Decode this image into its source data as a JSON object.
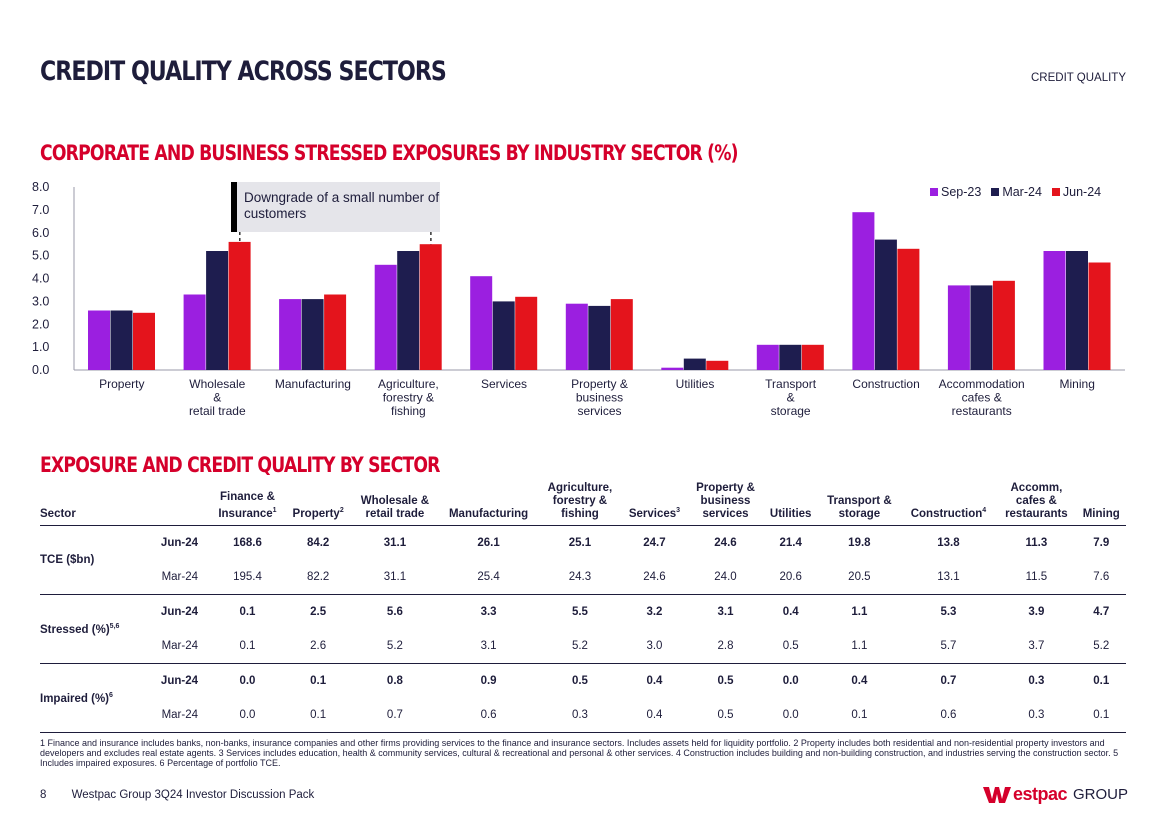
{
  "page": {
    "title": "CREDIT QUALITY ACROSS SECTORS",
    "section_tag": "CREDIT QUALITY",
    "chart_title": "CORPORATE AND BUSINESS STRESSED EXPOSURES BY INDUSTRY SECTOR (%)",
    "table_title": "EXPOSURE AND CREDIT QUALITY BY SECTOR",
    "callout": "Downgrade of a small number of customers",
    "page_number": "8",
    "footer_text": "Westpac Group 3Q24 Investor Discussion Pack",
    "logo_text": "estpac",
    "logo_group": "GROUP"
  },
  "colors": {
    "sep23": "#9b1fe0",
    "mar24": "#1e1d4f",
    "jun24": "#e4141c",
    "brand_red": "#d5002b",
    "navy": "#1e1d3b"
  },
  "chart_data": {
    "type": "bar",
    "title": "CORPORATE AND BUSINESS STRESSED EXPOSURES BY INDUSTRY SECTOR (%)",
    "categories": [
      [
        "Property"
      ],
      [
        "Wholesale",
        "&",
        "retail trade"
      ],
      [
        "Manufacturing"
      ],
      [
        "Agriculture,",
        "forestry &",
        "fishing"
      ],
      [
        "Services"
      ],
      [
        "Property &",
        "business",
        "services"
      ],
      [
        "Utilities"
      ],
      [
        "Transport",
        "&",
        "storage"
      ],
      [
        "Construction"
      ],
      [
        "Accommodation",
        "cafes &",
        "restaurants"
      ],
      [
        "Mining"
      ]
    ],
    "series": [
      {
        "name": "Sep-23",
        "values": [
          2.6,
          3.3,
          3.1,
          4.6,
          4.1,
          2.9,
          0.1,
          1.1,
          6.9,
          3.7,
          5.2
        ]
      },
      {
        "name": "Mar-24",
        "values": [
          2.6,
          5.2,
          3.1,
          5.2,
          3.0,
          2.8,
          0.5,
          1.1,
          5.7,
          3.7,
          5.2
        ]
      },
      {
        "name": "Jun-24",
        "values": [
          2.5,
          5.6,
          3.3,
          5.5,
          3.2,
          3.1,
          0.4,
          1.1,
          5.3,
          3.9,
          4.7
        ]
      }
    ],
    "ylim": [
      0,
      8
    ],
    "yticks": [
      "0.0",
      "1.0",
      "2.0",
      "3.0",
      "4.0",
      "5.0",
      "6.0",
      "7.0",
      "8.0"
    ],
    "xlabel": "",
    "ylabel": "",
    "legend": "top-right"
  },
  "table": {
    "sector_header": "Sector",
    "columns": [
      {
        "lines": [
          "Finance &",
          "Insurance"
        ],
        "sup": "1"
      },
      {
        "lines": [
          "Property"
        ],
        "sup": "2"
      },
      {
        "lines": [
          "Wholesale &",
          "retail trade"
        ],
        "sup": ""
      },
      {
        "lines": [
          "Manufacturing"
        ],
        "sup": ""
      },
      {
        "lines": [
          "Agriculture,",
          "forestry &",
          "fishing"
        ],
        "sup": ""
      },
      {
        "lines": [
          "Services"
        ],
        "sup": "3"
      },
      {
        "lines": [
          "Property &",
          "business",
          "services"
        ],
        "sup": ""
      },
      {
        "lines": [
          "Utilities"
        ],
        "sup": ""
      },
      {
        "lines": [
          "Transport &",
          "storage"
        ],
        "sup": ""
      },
      {
        "lines": [
          "Construction"
        ],
        "sup": "4"
      },
      {
        "lines": [
          "Accomm,",
          "cafes &",
          "restaurants"
        ],
        "sup": ""
      },
      {
        "lines": [
          "Mining"
        ],
        "sup": ""
      }
    ],
    "groups": [
      {
        "label": "TCE ($bn)",
        "sup": "",
        "rows": [
          {
            "period": "Jun-24",
            "values": [
              "168.6",
              "84.2",
              "31.1",
              "26.1",
              "25.1",
              "24.7",
              "24.6",
              "21.4",
              "19.8",
              "13.8",
              "11.3",
              "7.9"
            ]
          },
          {
            "period": "Mar-24",
            "values": [
              "195.4",
              "82.2",
              "31.1",
              "25.4",
              "24.3",
              "24.6",
              "24.0",
              "20.6",
              "20.5",
              "13.1",
              "11.5",
              "7.6"
            ]
          }
        ]
      },
      {
        "label": "Stressed (%)",
        "sup": "5,6",
        "rows": [
          {
            "period": "Jun-24",
            "values": [
              "0.1",
              "2.5",
              "5.6",
              "3.3",
              "5.5",
              "3.2",
              "3.1",
              "0.4",
              "1.1",
              "5.3",
              "3.9",
              "4.7"
            ]
          },
          {
            "period": "Mar-24",
            "values": [
              "0.1",
              "2.6",
              "5.2",
              "3.1",
              "5.2",
              "3.0",
              "2.8",
              "0.5",
              "1.1",
              "5.7",
              "3.7",
              "5.2"
            ]
          }
        ]
      },
      {
        "label": "Impaired (%)",
        "sup": "6",
        "rows": [
          {
            "period": "Jun-24",
            "values": [
              "0.0",
              "0.1",
              "0.8",
              "0.9",
              "0.5",
              "0.4",
              "0.5",
              "0.0",
              "0.4",
              "0.7",
              "0.3",
              "0.1"
            ]
          },
          {
            "period": "Mar-24",
            "values": [
              "0.0",
              "0.1",
              "0.7",
              "0.6",
              "0.3",
              "0.4",
              "0.5",
              "0.0",
              "0.1",
              "0.6",
              "0.3",
              "0.1"
            ]
          }
        ]
      }
    ]
  },
  "footnotes": "1 Finance and insurance includes banks, non-banks, insurance companies and other firms providing services to the finance and insurance sectors. Includes assets held for liquidity portfolio. 2 Property includes both residential and non-residential property investors and developers and excludes real estate agents. 3 Services includes education, health & community services, cultural & recreational and personal & other services. 4 Construction includes building and non-building construction, and industries serving the construction sector. 5 Includes impaired exposures. 6 Percentage of portfolio TCE."
}
